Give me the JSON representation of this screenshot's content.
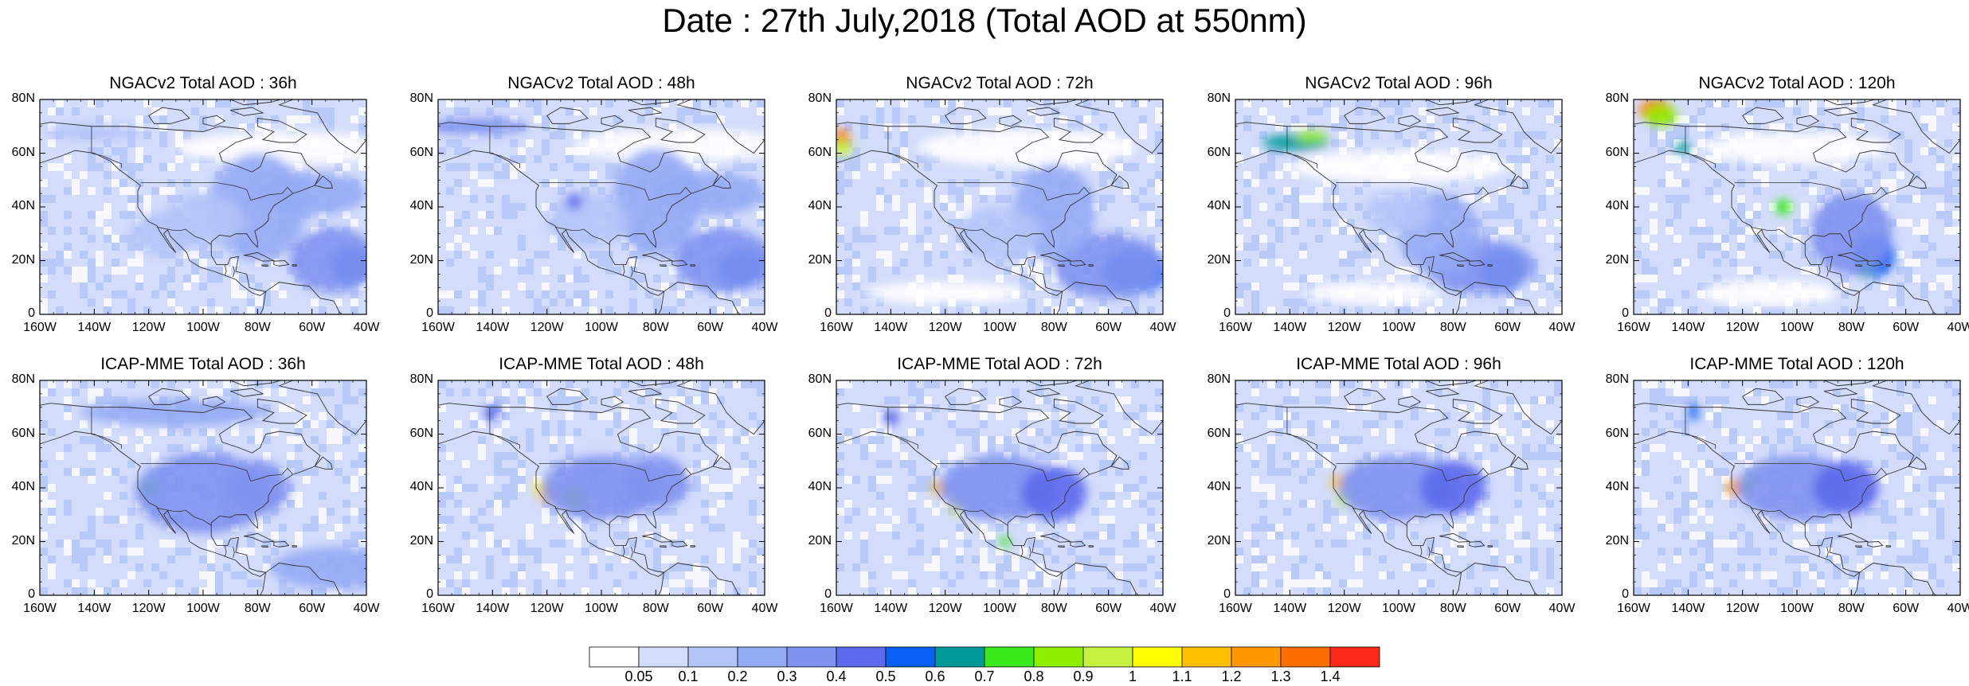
{
  "title": "Date : 27th July,2018 (Total AOD at 550nm)",
  "panels": [
    {
      "row": 0,
      "col": 0,
      "title": "NGACv2 Total AOD : 36h"
    },
    {
      "row": 0,
      "col": 1,
      "title": "NGACv2 Total AOD : 48h"
    },
    {
      "row": 0,
      "col": 2,
      "title": "NGACv2 Total AOD : 72h"
    },
    {
      "row": 0,
      "col": 3,
      "title": "NGACv2 Total AOD : 96h"
    },
    {
      "row": 0,
      "col": 4,
      "title": "NGACv2 Total AOD : 120h"
    },
    {
      "row": 1,
      "col": 0,
      "title": "ICAP-MME Total AOD : 36h"
    },
    {
      "row": 1,
      "col": 1,
      "title": "ICAP-MME Total AOD : 48h"
    },
    {
      "row": 1,
      "col": 2,
      "title": "ICAP-MME Total AOD : 72h"
    },
    {
      "row": 1,
      "col": 3,
      "title": "ICAP-MME Total AOD : 96h"
    },
    {
      "row": 1,
      "col": 4,
      "title": "ICAP-MME Total AOD : 120h"
    }
  ],
  "lat_ticks": [
    "80N",
    "60N",
    "40N",
    "20N",
    "0"
  ],
  "lon_ticks": [
    "160W",
    "140W",
    "120W",
    "100W",
    "80W",
    "60W",
    "40W"
  ],
  "lon_range": [
    -160,
    -40
  ],
  "lat_range": [
    0,
    80
  ],
  "colorbar": {
    "colors": [
      "#ffffff",
      "#d3dcfb",
      "#b3c4f8",
      "#93aaf5",
      "#7f92f0",
      "#5d6aec",
      "#0a5ff4",
      "#009a9a",
      "#39e91c",
      "#8ef000",
      "#c7f242",
      "#fdfd00",
      "#fec000",
      "#fe9800",
      "#fd6e00",
      "#fd2a1a"
    ],
    "labels": [
      "0.05",
      "0.1",
      "0.2",
      "0.3",
      "0.4",
      "0.5",
      "0.6",
      "0.7",
      "0.8",
      "0.9",
      "1",
      "1.1",
      "1.2",
      "1.3",
      "1.4"
    ]
  },
  "colors": {
    "land_outline": "#333333",
    "base_field": "#d3dcfb"
  }
}
